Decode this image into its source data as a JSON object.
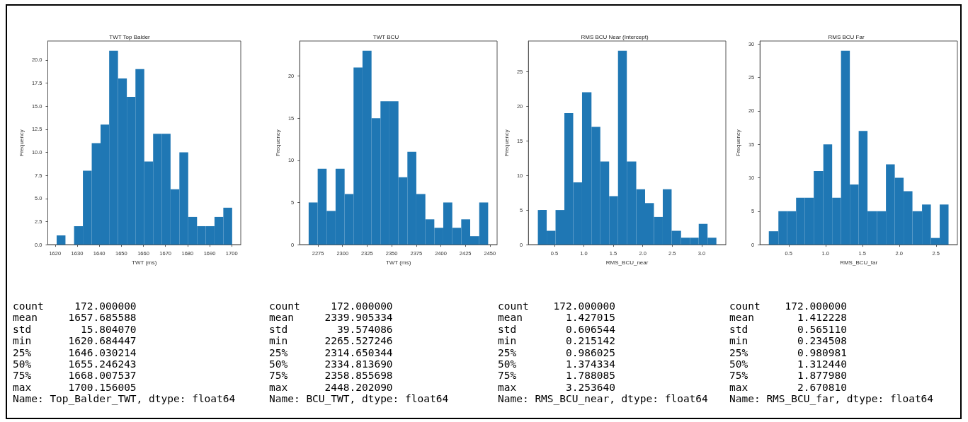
{
  "chart_data": [
    {
      "type": "histogram",
      "title": "TWT Top Balder",
      "xlabel": "TWT (ms)",
      "ylabel": "Frequency",
      "color": "#1f77b4",
      "bins": [
        1620.7,
        1624.7,
        1628.6,
        1632.6,
        1636.6,
        1640.6,
        1644.5,
        1648.5,
        1652.5,
        1656.4,
        1660.4,
        1664.4,
        1668.4,
        1672.3,
        1676.3,
        1680.3,
        1684.3,
        1688.2,
        1692.2,
        1696.2,
        1700.2
      ],
      "values": [
        1,
        0,
        2,
        8,
        11,
        13,
        21,
        18,
        16,
        19,
        9,
        12,
        12,
        6,
        10,
        3,
        2,
        2,
        3,
        4
      ],
      "xlim": [
        1616.7,
        1704.1
      ],
      "xticks": [
        1620,
        1630,
        1640,
        1650,
        1660,
        1670,
        1680,
        1690,
        1700
      ],
      "ylim": [
        0,
        22.05
      ],
      "yticks": [
        {
          "value": 0,
          "label": "0.0"
        },
        {
          "value": 2.5,
          "label": "2.5"
        },
        {
          "value": 5,
          "label": "5.0"
        },
        {
          "value": 7.5,
          "label": "7.5"
        },
        {
          "value": 10,
          "label": "10.0"
        },
        {
          "value": 12.5,
          "label": "12.5"
        },
        {
          "value": 15,
          "label": "15.0"
        },
        {
          "value": 17.5,
          "label": "17.5"
        },
        {
          "value": 20,
          "label": "20.0"
        }
      ],
      "grid": false,
      "annotations": [
        "count     172.000000",
        "mean     1657.685588",
        "std        15.804070",
        "min      1620.684447",
        "25%      1646.030214",
        "50%      1655.246243",
        "75%      1668.007537",
        "max      1700.156005",
        "Name: Top_Balder_TWT, dtype: float64"
      ]
    },
    {
      "type": "histogram",
      "title": "TWT BCU",
      "xlabel": "TWT (ms)",
      "ylabel": "Frequency",
      "color": "#1f77b4",
      "bins": [
        2265.5,
        2274.7,
        2283.8,
        2292.9,
        2302.1,
        2311.2,
        2320.3,
        2329.5,
        2338.6,
        2347.7,
        2356.9,
        2366.0,
        2375.1,
        2384.3,
        2393.4,
        2402.5,
        2411.7,
        2420.8,
        2429.9,
        2439.1,
        2448.2
      ],
      "values": [
        5,
        9,
        4,
        9,
        6,
        21,
        23,
        15,
        17,
        17,
        8,
        11,
        6,
        3,
        2,
        5,
        2,
        3,
        1,
        5
      ],
      "xlim": [
        2256.4,
        2457.3
      ],
      "xticks": [
        2275,
        2300,
        2325,
        2350,
        2375,
        2400,
        2425,
        2450
      ],
      "ylim": [
        0,
        24.15
      ],
      "yticks": [
        0,
        5,
        10,
        15,
        20
      ],
      "grid": false,
      "annotations": [
        "count     172.000000",
        "mean     2339.905334",
        "std        39.574086",
        "min      2265.527246",
        "25%      2314.650344",
        "50%      2334.813690",
        "75%      2358.855698",
        "max      2448.202090",
        "Name: BCU_TWT, dtype: float64"
      ]
    },
    {
      "type": "histogram",
      "title": "RMS BCU Near (Intercept)",
      "xlabel": "RMS_BCU_near",
      "ylabel": "Frequency",
      "color": "#1f77b4",
      "bins": [
        0.22,
        0.37,
        0.52,
        0.67,
        0.82,
        0.97,
        1.13,
        1.28,
        1.43,
        1.58,
        1.73,
        1.89,
        2.04,
        2.19,
        2.34,
        2.49,
        2.65,
        2.8,
        2.95,
        3.1,
        3.25
      ],
      "values": [
        5,
        2,
        5,
        19,
        9,
        22,
        17,
        12,
        7,
        28,
        12,
        8,
        6,
        4,
        8,
        2,
        1,
        1,
        3,
        1
      ],
      "xlim": [
        0.06,
        3.41
      ],
      "xticks": [
        {
          "value": 0.5,
          "label": "0.5"
        },
        {
          "value": 1,
          "label": "1.0"
        },
        {
          "value": 1.5,
          "label": "1.5"
        },
        {
          "value": 2,
          "label": "2.0"
        },
        {
          "value": 2.5,
          "label": "2.5"
        },
        {
          "value": 3,
          "label": "3.0"
        }
      ],
      "ylim": [
        0,
        29.4
      ],
      "yticks": [
        0,
        5,
        10,
        15,
        20,
        25
      ],
      "grid": false,
      "annotations": [
        "count    172.000000",
        "mean       1.427015",
        "std        0.606544",
        "min        0.215142",
        "25%        0.986025",
        "50%        1.374334",
        "75%        1.788085",
        "max        3.253640",
        "Name: RMS_BCU_near, dtype: float64"
      ]
    },
    {
      "type": "histogram",
      "title": "RMS BCU Far",
      "xlabel": "RMS_BCU_far",
      "ylabel": "Frequency",
      "color": "#1f77b4",
      "bins": [
        0.23,
        0.36,
        0.48,
        0.6,
        0.72,
        0.84,
        0.97,
        1.09,
        1.21,
        1.33,
        1.45,
        1.57,
        1.7,
        1.82,
        1.94,
        2.06,
        2.18,
        2.31,
        2.43,
        2.55,
        2.67
      ],
      "values": [
        2,
        5,
        5,
        7,
        7,
        11,
        15,
        7,
        29,
        9,
        17,
        5,
        5,
        12,
        10,
        8,
        5,
        6,
        1,
        6
      ],
      "xlim": [
        0.11,
        2.79
      ],
      "xticks": [
        {
          "value": 0.5,
          "label": "0.5"
        },
        {
          "value": 1,
          "label": "1.0"
        },
        {
          "value": 1.5,
          "label": "1.5"
        },
        {
          "value": 2,
          "label": "2.0"
        },
        {
          "value": 2.5,
          "label": "2.5"
        }
      ],
      "ylim": [
        0,
        30.45
      ],
      "yticks": [
        0,
        5,
        10,
        15,
        20,
        25,
        30
      ],
      "grid": false,
      "annotations": [
        "count    172.000000",
        "mean       1.412228",
        "std        0.565110",
        "min        0.234508",
        "25%        0.980981",
        "50%        1.312440",
        "75%        1.877980",
        "max        2.670810",
        "Name: RMS_BCU_far, dtype: float64"
      ]
    }
  ]
}
